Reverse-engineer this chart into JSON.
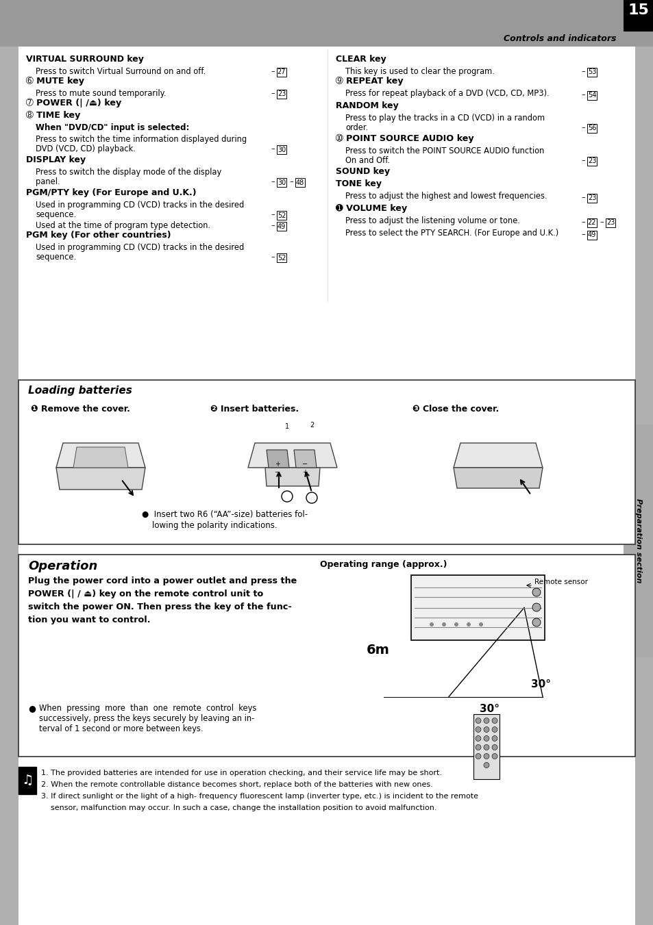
{
  "page_bg": "#b0b0b0",
  "page_num": "15",
  "header_text": "Controls and indicators",
  "sidebar_text": "Preparation section",
  "loading_title": "Loading batteries",
  "step1_title": "❶ Remove the cover.",
  "step2_title": "❷ Insert batteries.",
  "step3_title": "❸ Close the cover.",
  "loading_note_line1": "●  Insert two R6 (“AA”-size) batteries fol-",
  "loading_note_line2": "    lowing the polarity indications.",
  "operation_title": "Operation",
  "operation_range_title": "Operating range (approx.)",
  "op_body_lines": [
    "Plug the power cord into a power outlet and press the",
    "POWER (| / ⏏) key on the remote control unit to",
    "switch the power ON. Then press the key of the func-",
    "tion you want to control."
  ],
  "op_note_bullet": "●",
  "op_note_lines": [
    "When  pressing  more  than  one  remote  control  keys",
    "successively, press the keys securely by leaving an in-",
    "terval of 1 second or more between keys."
  ],
  "remote_sensor_label": "Remote sensor",
  "dist_label": "6m",
  "angle_label1": "30°",
  "angle_label2": "30°",
  "footnotes": [
    "1. The provided batteries are intended for use in operation checking, and their service life may be short.",
    "2. When the remote controllable distance becomes short, replace both of the batteries with new ones.",
    "3. If direct sunlight or the light of a high- frequency fluorescent lamp (inverter type, etc.) is incident to the remote",
    "    sensor, malfunction may occur. In such a case, change the installation position to avoid malfunction."
  ],
  "left_col_items": [
    {
      "type": "h1",
      "text": "VIRTUAL SURROUND key"
    },
    {
      "type": "body",
      "text": "Press to switch Virtual Surround on and off.",
      "ref": "27",
      "ref_inline": true
    },
    {
      "type": "h2",
      "circled": "➅",
      "text": "MUTE key"
    },
    {
      "type": "body",
      "text": "Press to mute sound temporarily.",
      "ref": "23",
      "ref_inline": true
    },
    {
      "type": "h2",
      "circled": "➆",
      "text": "POWER (| /⏏) key"
    },
    {
      "type": "h2",
      "circled": "➇",
      "text": "TIME key"
    },
    {
      "type": "h3",
      "text": "When \"DVD/CD\" input is selected:"
    },
    {
      "type": "body",
      "text": "Press to switch the time information displayed during",
      "ref": null
    },
    {
      "type": "body_cont",
      "text": "DVD (VCD, CD) playback.",
      "ref": "30",
      "ref_inline": true
    },
    {
      "type": "h1",
      "text": "DISPLAY key"
    },
    {
      "type": "body_just",
      "text": "Press to switch the display mode of the display",
      "ref": null
    },
    {
      "type": "body_cont",
      "text": "panel.",
      "ref": "30+48",
      "ref_inline": true
    },
    {
      "type": "h1",
      "text": "PGM/PTY key (For Europe and U.K.)"
    },
    {
      "type": "body",
      "text": "Used in programming CD (VCD) tracks in the desired",
      "ref": null
    },
    {
      "type": "body_cont",
      "text": "sequence.",
      "ref": "52",
      "ref_inline": true
    },
    {
      "type": "body",
      "text": "Used at the time of program type detection.",
      "ref": "49",
      "ref_inline": true
    },
    {
      "type": "h1",
      "text": "PGM key (For other countries)"
    },
    {
      "type": "body",
      "text": "Used in programming CD (VCD) tracks in the desired",
      "ref": null
    },
    {
      "type": "body_cont",
      "text": "sequence.",
      "ref": "52",
      "ref_inline": true
    }
  ],
  "right_col_items": [
    {
      "type": "h1",
      "text": "CLEAR key"
    },
    {
      "type": "body",
      "text": "This key is used to clear the program.",
      "ref": "53",
      "ref_inline": true
    },
    {
      "type": "h2",
      "circled": "➈",
      "text": "REPEAT key"
    },
    {
      "type": "body",
      "text": "Press for repeat playback of a DVD (VCD, CD, MP3).",
      "ref": null
    },
    {
      "type": "body_ref_only",
      "ref": "54"
    },
    {
      "type": "h1",
      "text": "RANDOM key"
    },
    {
      "type": "body",
      "text": "Press to play the tracks in a CD (VCD) in a random",
      "ref": null
    },
    {
      "type": "body_cont",
      "text": "order.",
      "ref": "56",
      "ref_inline": true
    },
    {
      "type": "h2",
      "circled": "➉",
      "text": "POINT SOURCE AUDIO key"
    },
    {
      "type": "body",
      "text": "Press to switch the POINT SOURCE AUDIO function",
      "ref": null
    },
    {
      "type": "body_cont",
      "text": "On and Off.",
      "ref": "23",
      "ref_inline": true
    },
    {
      "type": "h1",
      "text": "SOUND key"
    },
    {
      "type": "h1",
      "text": "TONE key"
    },
    {
      "type": "body",
      "text": "Press to adjust the highest and lowest frequencies.",
      "ref": null
    },
    {
      "type": "body_ref_only",
      "ref": "23"
    },
    {
      "type": "h2",
      "circled": "➊",
      "text": "VOLUME key"
    },
    {
      "type": "body",
      "text": "Press to adjust the listening volume or tone.",
      "ref": null
    },
    {
      "type": "body_ref_only",
      "ref": "22+23"
    },
    {
      "type": "body",
      "text": "Press to select the PTY SEARCH. (For Europe and U.K.)",
      "ref": null
    },
    {
      "type": "body_ref_only",
      "ref": "49"
    }
  ]
}
